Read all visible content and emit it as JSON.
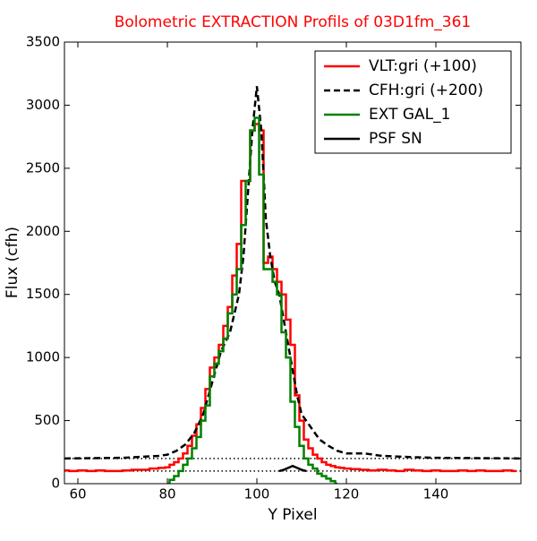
{
  "chart_data": {
    "type": "line",
    "title": "Bolometric EXTRACTION Profils of 03D1fm_361",
    "xlabel": "Y Pixel",
    "ylabel": "Flux (cfh)",
    "xlim": [
      57,
      159
    ],
    "ylim": [
      0,
      3500
    ],
    "xticks": [
      60,
      80,
      100,
      120,
      140
    ],
    "yticks": [
      0,
      500,
      1000,
      1500,
      2000,
      2500,
      3000,
      3500
    ],
    "legend": "upper right",
    "hlines": [
      100,
      200
    ],
    "series": [
      {
        "name": "VLT:gri (+100)",
        "color": "#ff0000",
        "style": "steps",
        "x": [
          57,
          59,
          61,
          63,
          65,
          67,
          69,
          71,
          73,
          75,
          77,
          79,
          80,
          81,
          82,
          83,
          84,
          85,
          86,
          87,
          88,
          89,
          90,
          91,
          92,
          93,
          94,
          95,
          96,
          97,
          98,
          99,
          100,
          101,
          102,
          103,
          104,
          105,
          106,
          107,
          108,
          109,
          110,
          111,
          112,
          113,
          114,
          115,
          116,
          117,
          118,
          119,
          120,
          122,
          124,
          126,
          128,
          130,
          132,
          134,
          136,
          138,
          140,
          142,
          144,
          146,
          148,
          150,
          152,
          154,
          156,
          158
        ],
        "values": [
          105,
          100,
          105,
          100,
          105,
          100,
          100,
          105,
          110,
          110,
          120,
          125,
          130,
          150,
          170,
          200,
          240,
          300,
          380,
          470,
          600,
          750,
          920,
          1000,
          1100,
          1250,
          1400,
          1650,
          1900,
          2400,
          2400,
          2800,
          2850,
          2800,
          1750,
          1800,
          1700,
          1600,
          1500,
          1300,
          1100,
          700,
          500,
          350,
          280,
          230,
          200,
          170,
          150,
          140,
          130,
          125,
          120,
          115,
          110,
          105,
          110,
          105,
          100,
          110,
          105,
          100,
          105,
          100,
          100,
          105,
          100,
          105,
          100,
          100,
          105,
          100
        ]
      },
      {
        "name": "CFH:gri (+200)",
        "color": "#000000",
        "style": "dashed",
        "x": [
          57,
          70,
          78,
          80,
          82,
          84,
          86,
          88,
          90,
          92,
          94,
          96,
          97,
          98,
          99,
          100,
          101,
          102,
          103,
          104,
          105,
          106,
          107,
          108,
          109,
          110,
          112,
          114,
          116,
          118,
          120,
          124,
          128,
          135,
          140,
          159
        ],
        "values": [
          200,
          205,
          220,
          230,
          260,
          310,
          400,
          550,
          800,
          1050,
          1200,
          1500,
          1800,
          2300,
          2800,
          3150,
          2800,
          2100,
          1800,
          1600,
          1500,
          1300,
          1100,
          900,
          700,
          550,
          450,
          350,
          300,
          260,
          240,
          240,
          220,
          210,
          205,
          200
        ]
      },
      {
        "name": "EXT GAL_1",
        "color": "#008000",
        "style": "steps",
        "x": [
          80,
          81,
          82,
          83,
          84,
          85,
          86,
          87,
          88,
          89,
          90,
          91,
          92,
          93,
          94,
          95,
          96,
          97,
          98,
          99,
          100,
          101,
          102,
          103,
          104,
          105,
          106,
          107,
          108,
          109,
          110,
          111,
          112,
          113,
          114,
          115,
          116,
          117,
          118
        ],
        "values": [
          0,
          30,
          60,
          100,
          150,
          200,
          280,
          370,
          500,
          620,
          850,
          950,
          1050,
          1150,
          1350,
          1500,
          1700,
          2050,
          2400,
          2800,
          2900,
          2450,
          1700,
          1700,
          1600,
          1500,
          1200,
          1000,
          650,
          450,
          300,
          200,
          150,
          120,
          80,
          60,
          40,
          20,
          0
        ]
      },
      {
        "name": "PSF SN",
        "color": "#000000",
        "style": "solid",
        "x": [
          105,
          106,
          107,
          108,
          109,
          110,
          111
        ],
        "values": [
          100,
          110,
          125,
          140,
          125,
          110,
          100
        ]
      }
    ]
  }
}
